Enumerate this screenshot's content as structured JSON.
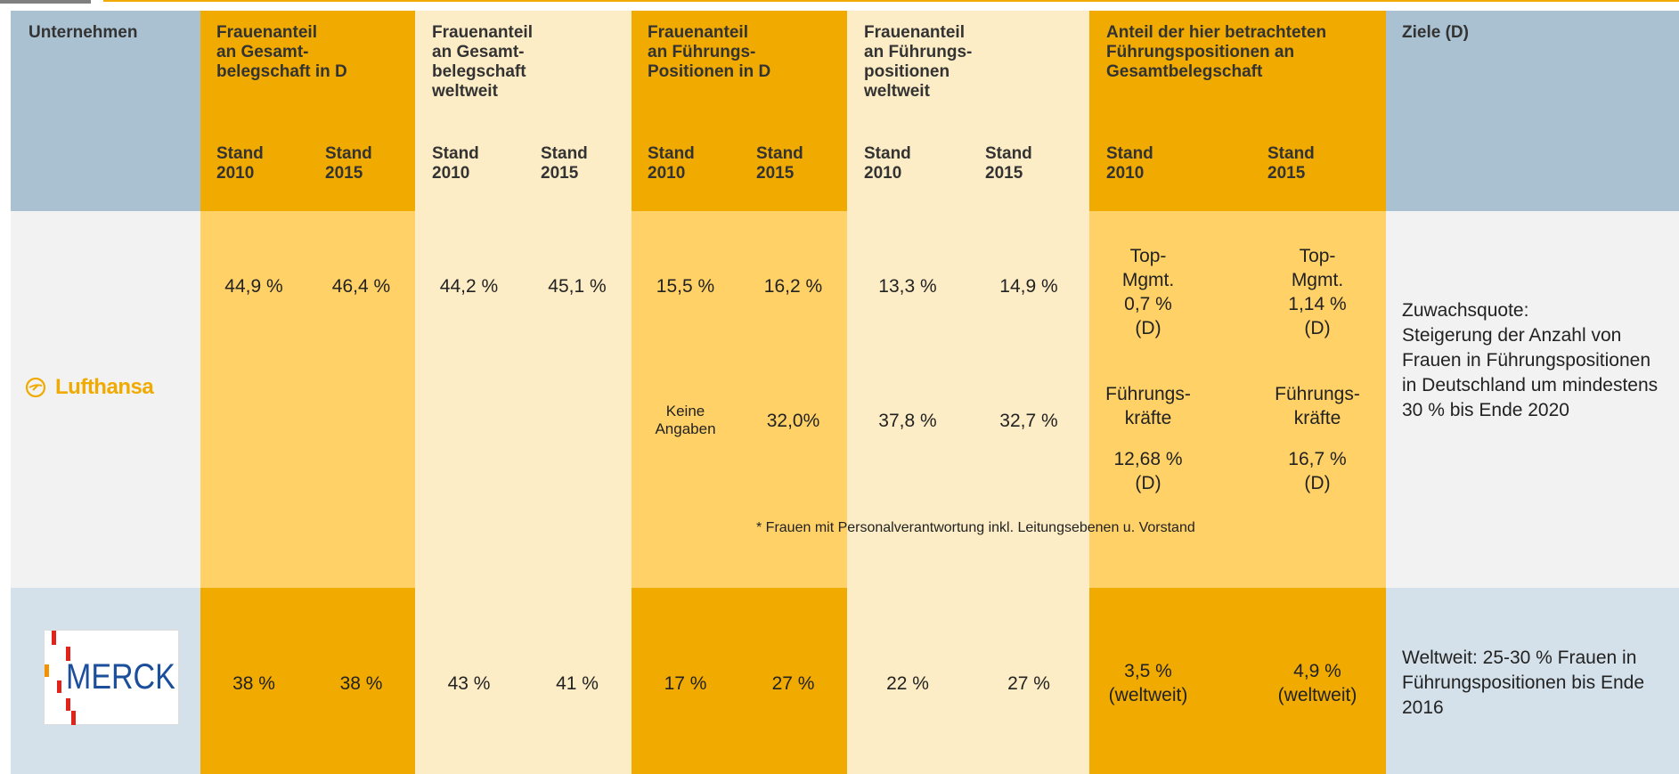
{
  "header": {
    "company": "Unternehmen",
    "groups": [
      {
        "title": "Frauenanteil\nan Gesamt-\nbelegschaft in D",
        "stand": [
          "Stand\n2010",
          "Stand\n2015"
        ]
      },
      {
        "title": "Frauenanteil\nan Gesamt-\nbelegschaft\nweltweit",
        "stand": [
          "Stand\n2010",
          "Stand\n2015"
        ]
      },
      {
        "title": "Frauenanteil\nan Führungs-\nPositionen in D",
        "stand": [
          "Stand\n2010",
          "Stand\n2015"
        ]
      },
      {
        "title": "Frauenanteil\nan Führungs-\npositionen\nweltweit",
        "stand": [
          "Stand\n2010",
          "Stand\n2015"
        ]
      },
      {
        "title": "Anteil der hier betrachteten\nFührungspositionen an\nGesamtbelegschaft",
        "stand": [
          "Stand\n2010",
          "Stand\n2015"
        ]
      }
    ],
    "goals": "Ziele (D)"
  },
  "rows": [
    {
      "company": "Lufthansa",
      "cells": [
        [
          "44,9 %",
          "46,4 %"
        ],
        [
          "44,2 %",
          "45,1 %"
        ],
        [
          "15,5 %",
          "16,2 %",
          "Keine\nAngaben",
          "32,0%"
        ],
        [
          "13,3 %",
          "14,9 %",
          "37,8 %",
          "32,7 %"
        ],
        [
          "Top-\nMgmt.\n0,7 %\n(D)",
          "Top-\nMgmt.\n1,14 %\n(D)",
          "Führungs-\nkräfte",
          "Führungs-\nkräfte",
          "12,68 %\n(D)",
          "16,7 %\n(D)"
        ]
      ],
      "footnote": "* Frauen mit Personalverantwortung inkl. Leitungsebenen u. Vorstand",
      "goals": "Zuwachsquote:\nSteigerung der Anzahl von Frauen in Führungspositionen in Deutschland um mindestens 30 % bis Ende 2020"
    },
    {
      "company": "MERCK",
      "cells": [
        [
          "38 %",
          "38 %"
        ],
        [
          "43 %",
          "41 %"
        ],
        [
          "17 %",
          "27 %"
        ],
        [
          "22 %",
          "27 %"
        ],
        [
          "3,5 %\n(weltweit)",
          "4,9 %\n(weltweit)"
        ]
      ],
      "goals": "Weltweit: 25-30 % Frauen in Führungspositionen bis Ende 2016"
    }
  ]
}
